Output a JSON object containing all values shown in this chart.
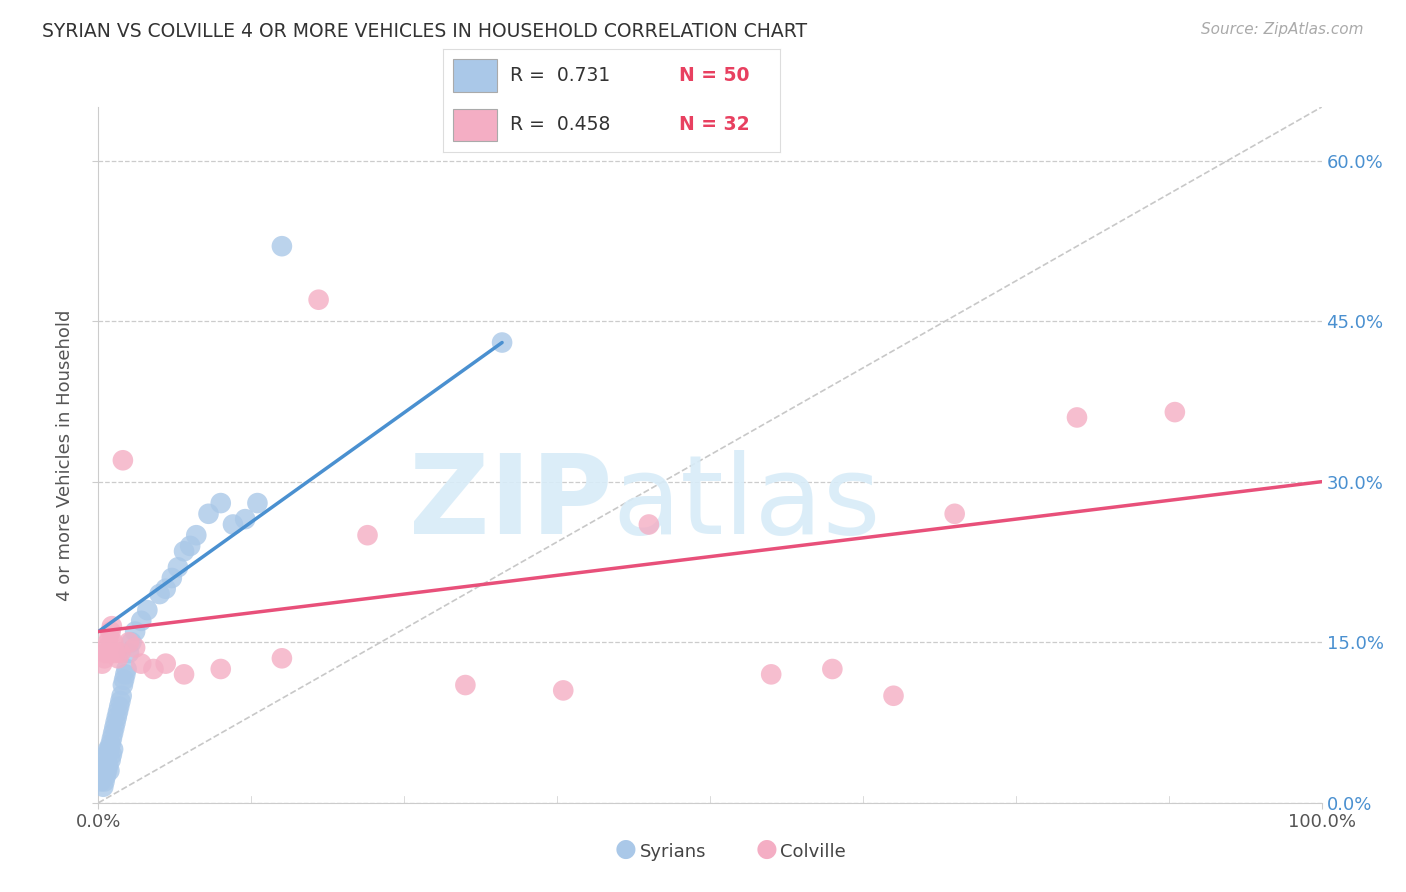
{
  "title": "SYRIAN VS COLVILLE 4 OR MORE VEHICLES IN HOUSEHOLD CORRELATION CHART",
  "source": "Source: ZipAtlas.com",
  "ylabel": "4 or more Vehicles in Household",
  "xlim": [
    0,
    100
  ],
  "ylim": [
    0,
    65
  ],
  "ytick_values": [
    0,
    15,
    30,
    45,
    60
  ],
  "ytick_labels": [
    "0.0%",
    "15.0%",
    "30.0%",
    "45.0%",
    "60.0%"
  ],
  "xtick_values": [
    0,
    100
  ],
  "xtick_labels": [
    "0.0%",
    "100.0%"
  ],
  "syrian_color": "#aac8e8",
  "colville_color": "#f4aec4",
  "syrian_line_color": "#4a90d0",
  "colville_line_color": "#e8507a",
  "diagonal_color": "#c8c8c8",
  "legend1_r": "R =  0.731",
  "legend1_n": "N = 50",
  "legend2_r": "R =  0.458",
  "legend2_n": "N = 32",
  "r_color": "#333333",
  "n_color": "#e84060",
  "bottom_label1": "Syrians",
  "bottom_label2": "Colville",
  "watermark_color": "#d8ecf8",
  "syrian_x": [
    0.2,
    0.3,
    0.4,
    0.4,
    0.5,
    0.5,
    0.6,
    0.6,
    0.7,
    0.7,
    0.8,
    0.8,
    0.9,
    0.9,
    1.0,
    1.0,
    1.1,
    1.1,
    1.2,
    1.2,
    1.3,
    1.4,
    1.5,
    1.6,
    1.7,
    1.8,
    1.9,
    2.0,
    2.1,
    2.2,
    2.3,
    2.5,
    2.7,
    3.0,
    3.5,
    4.0,
    5.0,
    5.5,
    6.0,
    6.5,
    7.0,
    7.5,
    8.0,
    9.0,
    10.0,
    11.0,
    12.0,
    13.0,
    15.0,
    33.0
  ],
  "syrian_y": [
    2.0,
    2.5,
    3.0,
    1.5,
    3.5,
    2.0,
    4.0,
    2.5,
    4.5,
    3.0,
    5.0,
    3.5,
    5.0,
    3.0,
    5.5,
    4.0,
    6.0,
    4.5,
    6.5,
    5.0,
    7.0,
    7.5,
    8.0,
    8.5,
    9.0,
    9.5,
    10.0,
    11.0,
    11.5,
    12.0,
    12.5,
    14.0,
    15.0,
    16.0,
    17.0,
    18.0,
    19.5,
    20.0,
    21.0,
    22.0,
    23.5,
    24.0,
    25.0,
    27.0,
    28.0,
    26.0,
    26.5,
    28.0,
    52.0,
    43.0
  ],
  "colville_x": [
    0.3,
    0.5,
    0.6,
    0.7,
    0.8,
    0.9,
    1.0,
    1.1,
    1.2,
    1.4,
    1.6,
    1.8,
    2.0,
    2.5,
    3.0,
    3.5,
    4.5,
    5.5,
    7.0,
    10.0,
    15.0,
    18.0,
    22.0,
    30.0,
    38.0,
    45.0,
    55.0,
    60.0,
    65.0,
    70.0,
    80.0,
    88.0
  ],
  "colville_y": [
    13.0,
    13.5,
    14.0,
    14.5,
    15.0,
    15.5,
    16.0,
    16.5,
    15.0,
    14.0,
    13.5,
    14.0,
    32.0,
    15.0,
    14.5,
    13.0,
    12.5,
    13.0,
    12.0,
    12.5,
    13.5,
    47.0,
    25.0,
    11.0,
    10.5,
    26.0,
    12.0,
    12.5,
    10.0,
    27.0,
    36.0,
    36.5
  ]
}
